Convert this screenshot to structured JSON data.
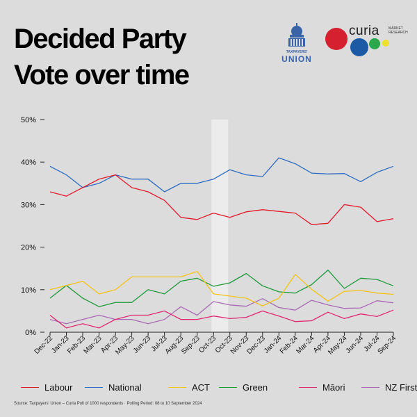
{
  "title_line1": "Decided Party",
  "title_line2": "Vote over time",
  "logos": {
    "taxpayers_union_small": "TAXPAYERS'",
    "taxpayers_union_big": "UNION",
    "curia_name": "curia",
    "curia_sub1": "MARKET",
    "curia_sub2": "RESEARCH"
  },
  "source": "Source: Taxpayers' Union – Curia Poll of 1000 respondents · Polling Period: 08 to 10 September 2024",
  "chart_data": {
    "type": "line",
    "x": [
      "Dec-22",
      "Jan-23",
      "Feb-23",
      "Mar-23",
      "Apr-23",
      "May-23",
      "Jun-23",
      "Jul-23",
      "Aug-23",
      "Sep-23",
      "Oct-23",
      "Oct-23",
      "Nov-23",
      "Dec-23",
      "Jan-24",
      "Feb-24",
      "Mar-24",
      "Apr-24",
      "May-24",
      "Jun-24",
      "Jul-24",
      "Sep-24"
    ],
    "y_ticks": [
      "0%",
      "10%",
      "20%",
      "30%",
      "40%",
      "50%"
    ],
    "ylim": [
      0,
      50
    ],
    "highlight_x_index": 10,
    "series": [
      {
        "name": "Labour",
        "color": "#e3192b",
        "values": [
          33,
          32,
          34,
          36,
          37,
          34,
          33,
          31,
          27,
          26.5,
          28,
          27,
          28.3,
          28.8,
          28.4,
          28,
          25.3,
          25.6,
          30,
          29.4,
          26,
          26.7
        ]
      },
      {
        "name": "National",
        "color": "#2d6cc0",
        "values": [
          39,
          37,
          34,
          35,
          37,
          36,
          36,
          33,
          35,
          35,
          36,
          38.2,
          37,
          36.6,
          41,
          39.6,
          37.4,
          37.2,
          37.3,
          35.4,
          37.6,
          39
        ]
      },
      {
        "name": "ACT",
        "color": "#f5c216",
        "values": [
          10,
          11,
          12,
          9,
          10,
          13,
          13,
          13,
          13,
          14.3,
          9,
          8.5,
          8,
          6.2,
          8,
          13.6,
          10.1,
          7.3,
          9.6,
          9.8,
          9.2,
          8.9
        ]
      },
      {
        "name": "Green",
        "color": "#1f9a3a",
        "values": [
          8,
          11,
          8,
          6,
          7,
          7,
          10,
          9,
          12,
          12.7,
          10.8,
          11.6,
          13.8,
          10.9,
          9.5,
          9.2,
          11.2,
          14.6,
          10.3,
          12.7,
          12.4,
          10.9
        ]
      },
      {
        "name": "Māori",
        "color": "#e0286f",
        "values": [
          4,
          1,
          2,
          1,
          3,
          4,
          4,
          5,
          3,
          3,
          3.8,
          3.2,
          3.5,
          5,
          3.8,
          2.5,
          2.7,
          4.7,
          3.2,
          4.3,
          3.7,
          5.2
        ]
      },
      {
        "name": "NZ First",
        "color": "#a86bb3",
        "values": [
          3,
          2,
          3,
          4,
          3,
          3,
          2,
          3,
          6,
          4,
          7.2,
          6.4,
          6.1,
          7.9,
          5.8,
          5.2,
          7.5,
          6.4,
          5.6,
          5.7,
          7.4,
          6.9
        ]
      }
    ]
  }
}
